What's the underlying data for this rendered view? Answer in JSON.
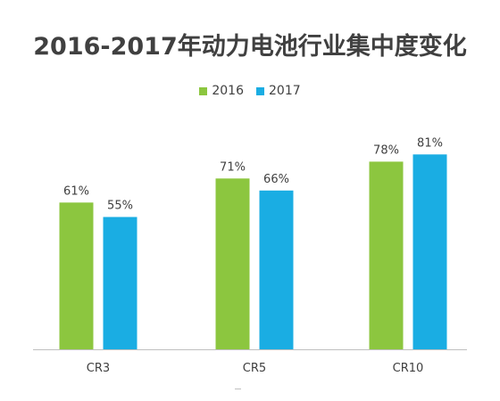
{
  "chart_data": {
    "type": "bar",
    "title": "2016-2017年动力电池行业集中度变化",
    "categories": [
      "CR3",
      "CR5",
      "CR10"
    ],
    "series": [
      {
        "name": "2016",
        "values": [
          61,
          71,
          78
        ],
        "labels": [
          "61%",
          "71%",
          "78%"
        ],
        "color": "#8CC63F"
      },
      {
        "name": "2017",
        "values": [
          55,
          66,
          81
        ],
        "labels": [
          "55%",
          "66%",
          "81%"
        ],
        "color": "#1AADE3"
      }
    ],
    "ylim": [
      0,
      100
    ],
    "grid": false,
    "legend": "top-center",
    "axis_color": "#bfbfbf",
    "label_color": "#404040"
  }
}
